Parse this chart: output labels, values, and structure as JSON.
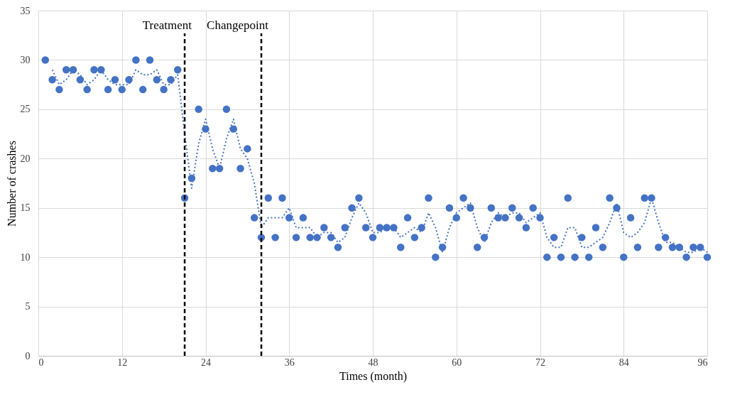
{
  "chart_data": {
    "type": "scatter",
    "xlabel": "Times (month)",
    "ylabel": "Number of crashes",
    "x": [
      1,
      2,
      3,
      4,
      5,
      6,
      7,
      8,
      9,
      10,
      11,
      12,
      13,
      14,
      15,
      16,
      17,
      18,
      19,
      20,
      21,
      22,
      23,
      24,
      25,
      26,
      27,
      28,
      29,
      30,
      31,
      32,
      33,
      34,
      35,
      36,
      37,
      38,
      39,
      40,
      41,
      42,
      43,
      44,
      45,
      46,
      47,
      48,
      49,
      50,
      51,
      52,
      53,
      54,
      55,
      56,
      57,
      58,
      59,
      60,
      61,
      62,
      63,
      64,
      65,
      66,
      67,
      68,
      69,
      70,
      71,
      72,
      73,
      74,
      75,
      76,
      77,
      78,
      79,
      80,
      81,
      82,
      83,
      84,
      85,
      86,
      87,
      88,
      89,
      90,
      91,
      92,
      93,
      94,
      95,
      96
    ],
    "series": [
      {
        "color": "#4472c4",
        "marker": "circle",
        "values": [
          30,
          28,
          27,
          29,
          29,
          28,
          27,
          29,
          29,
          27,
          28,
          27,
          28,
          30,
          27,
          30,
          28,
          27,
          28,
          29,
          16,
          18,
          25,
          23,
          19,
          19,
          25,
          23,
          19,
          21,
          14,
          12,
          16,
          12,
          16,
          14,
          12,
          14,
          12,
          12,
          13,
          12,
          11,
          13,
          15,
          16,
          13,
          12,
          13,
          13,
          13,
          11,
          14,
          12,
          13,
          16,
          10,
          11,
          15,
          14,
          16,
          15,
          11,
          12,
          15,
          14,
          14,
          15,
          14,
          13,
          15,
          14,
          10,
          12,
          10,
          16,
          10,
          12,
          10,
          13,
          11,
          16,
          15,
          10,
          14,
          11,
          16,
          16,
          11,
          12,
          11,
          11,
          10,
          11,
          11,
          10
        ]
      },
      {
        "type": "line",
        "color": "#4472c4",
        "line_style": "dotted",
        "x": [
          2,
          3,
          4,
          5,
          6,
          7,
          8,
          9,
          10,
          11,
          12,
          13,
          14,
          15,
          16,
          17,
          18,
          19,
          20,
          21,
          22,
          23,
          24,
          25,
          26,
          27,
          28,
          29,
          30,
          31,
          32,
          33,
          34,
          35,
          36,
          37,
          38,
          39,
          40,
          41,
          42,
          43,
          44,
          45,
          46,
          47,
          48,
          49,
          50,
          51,
          52,
          53,
          54,
          55,
          56,
          57,
          58,
          59,
          60,
          61,
          62,
          63,
          64,
          65,
          66,
          67,
          68,
          69,
          70,
          71,
          72,
          73,
          74,
          75,
          76,
          77,
          78,
          79,
          80,
          81,
          82,
          83,
          84,
          85,
          86,
          87,
          88,
          89,
          90,
          91,
          92,
          93,
          94,
          95,
          96
        ],
        "values": [
          29,
          27.5,
          28,
          29,
          28.5,
          27.5,
          28,
          29,
          28,
          27.5,
          27.5,
          27.5,
          29,
          28.5,
          28.5,
          29,
          27.5,
          27.5,
          28.5,
          22.5,
          17,
          21.5,
          24,
          21,
          19,
          22,
          24,
          21,
          20,
          17.5,
          13,
          14,
          14,
          14,
          15,
          13,
          13,
          13,
          12,
          12.5,
          12.5,
          11.5,
          12,
          14,
          15.5,
          14.5,
          12.5,
          12.5,
          13,
          13,
          12,
          12.5,
          13,
          12.5,
          14.5,
          13,
          10.5,
          13,
          14.5,
          15,
          15.5,
          13,
          11.5,
          13.5,
          14.5,
          14,
          14.5,
          14.5,
          13.5,
          14,
          14.5,
          12,
          11,
          11,
          13,
          13,
          11,
          11,
          11.5,
          12,
          13.5,
          15.5,
          12.5,
          12,
          12.5,
          13.5,
          16,
          13.5,
          11.5,
          11.5,
          11,
          10.5,
          10.5,
          11,
          10.5
        ]
      }
    ],
    "xlim": [
      0,
      96
    ],
    "xticks": [
      0,
      12,
      24,
      36,
      48,
      60,
      72,
      84,
      96
    ],
    "ylim": [
      0,
      35
    ],
    "yticks": [
      0,
      5,
      10,
      15,
      20,
      25,
      30,
      35
    ],
    "ref_lines": [
      {
        "axis": "x",
        "value": 21,
        "label": "Treatment",
        "color": "#000000",
        "line_style": "dashed"
      },
      {
        "axis": "x",
        "value": 32,
        "label": "Changepoint",
        "color": "#000000",
        "line_style": "dashed"
      }
    ],
    "grid": true
  }
}
